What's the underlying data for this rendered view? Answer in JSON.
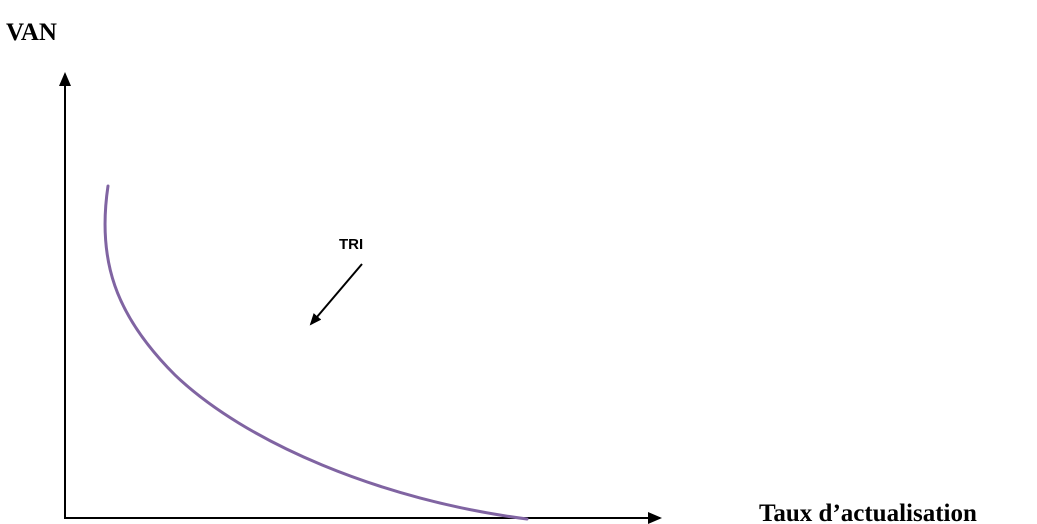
{
  "diagram": {
    "y_axis_label": "VAN",
    "x_axis_label": "Taux d’actualisation",
    "annotation_label": "TRI"
  },
  "colors": {
    "curve": "#8064a2",
    "axes": "#000000",
    "background": "#ffffff"
  }
}
